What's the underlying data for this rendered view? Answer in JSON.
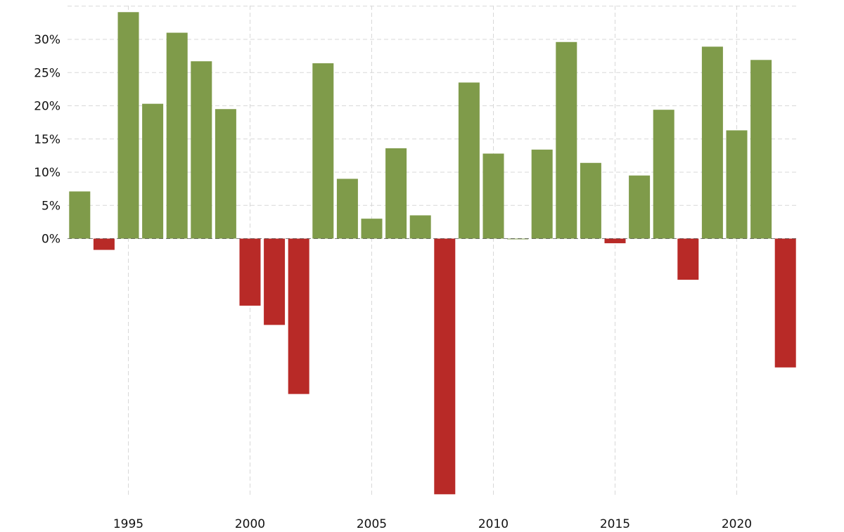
{
  "chart_data": {
    "type": "bar",
    "categories": [
      "1993",
      "1994",
      "1995",
      "1996",
      "1997",
      "1998",
      "1999",
      "2000",
      "2001",
      "2002",
      "2003",
      "2004",
      "2005",
      "2006",
      "2007",
      "2008",
      "2009",
      "2010",
      "2011",
      "2012",
      "2013",
      "2014",
      "2015",
      "2016",
      "2017",
      "2018",
      "2019",
      "2020",
      "2021",
      "2022"
    ],
    "values": [
      7.1,
      -1.7,
      34.1,
      20.3,
      31.0,
      26.7,
      19.5,
      -10.1,
      -13.0,
      -23.4,
      26.4,
      9.0,
      3.0,
      13.6,
      3.5,
      -38.5,
      23.5,
      12.8,
      0.0,
      13.4,
      29.6,
      11.4,
      -0.7,
      9.5,
      19.4,
      -6.2,
      28.9,
      16.3,
      26.9,
      -19.4
    ],
    "x_ticks": [
      1995,
      2000,
      2005,
      2010,
      2015,
      2020
    ],
    "y_ticks": [
      0,
      5,
      10,
      15,
      20,
      25,
      30
    ],
    "y_tick_labels": [
      "0%",
      "5%",
      "10%",
      "15%",
      "20%",
      "25%",
      "30%"
    ],
    "ylim": [
      -38.5,
      35
    ],
    "xlabel": "",
    "ylabel": "",
    "title": "",
    "grid": true,
    "colors": {
      "positive": "#7f9b4a",
      "negative": "#b82a27",
      "grid": "#d8d8d8"
    }
  }
}
